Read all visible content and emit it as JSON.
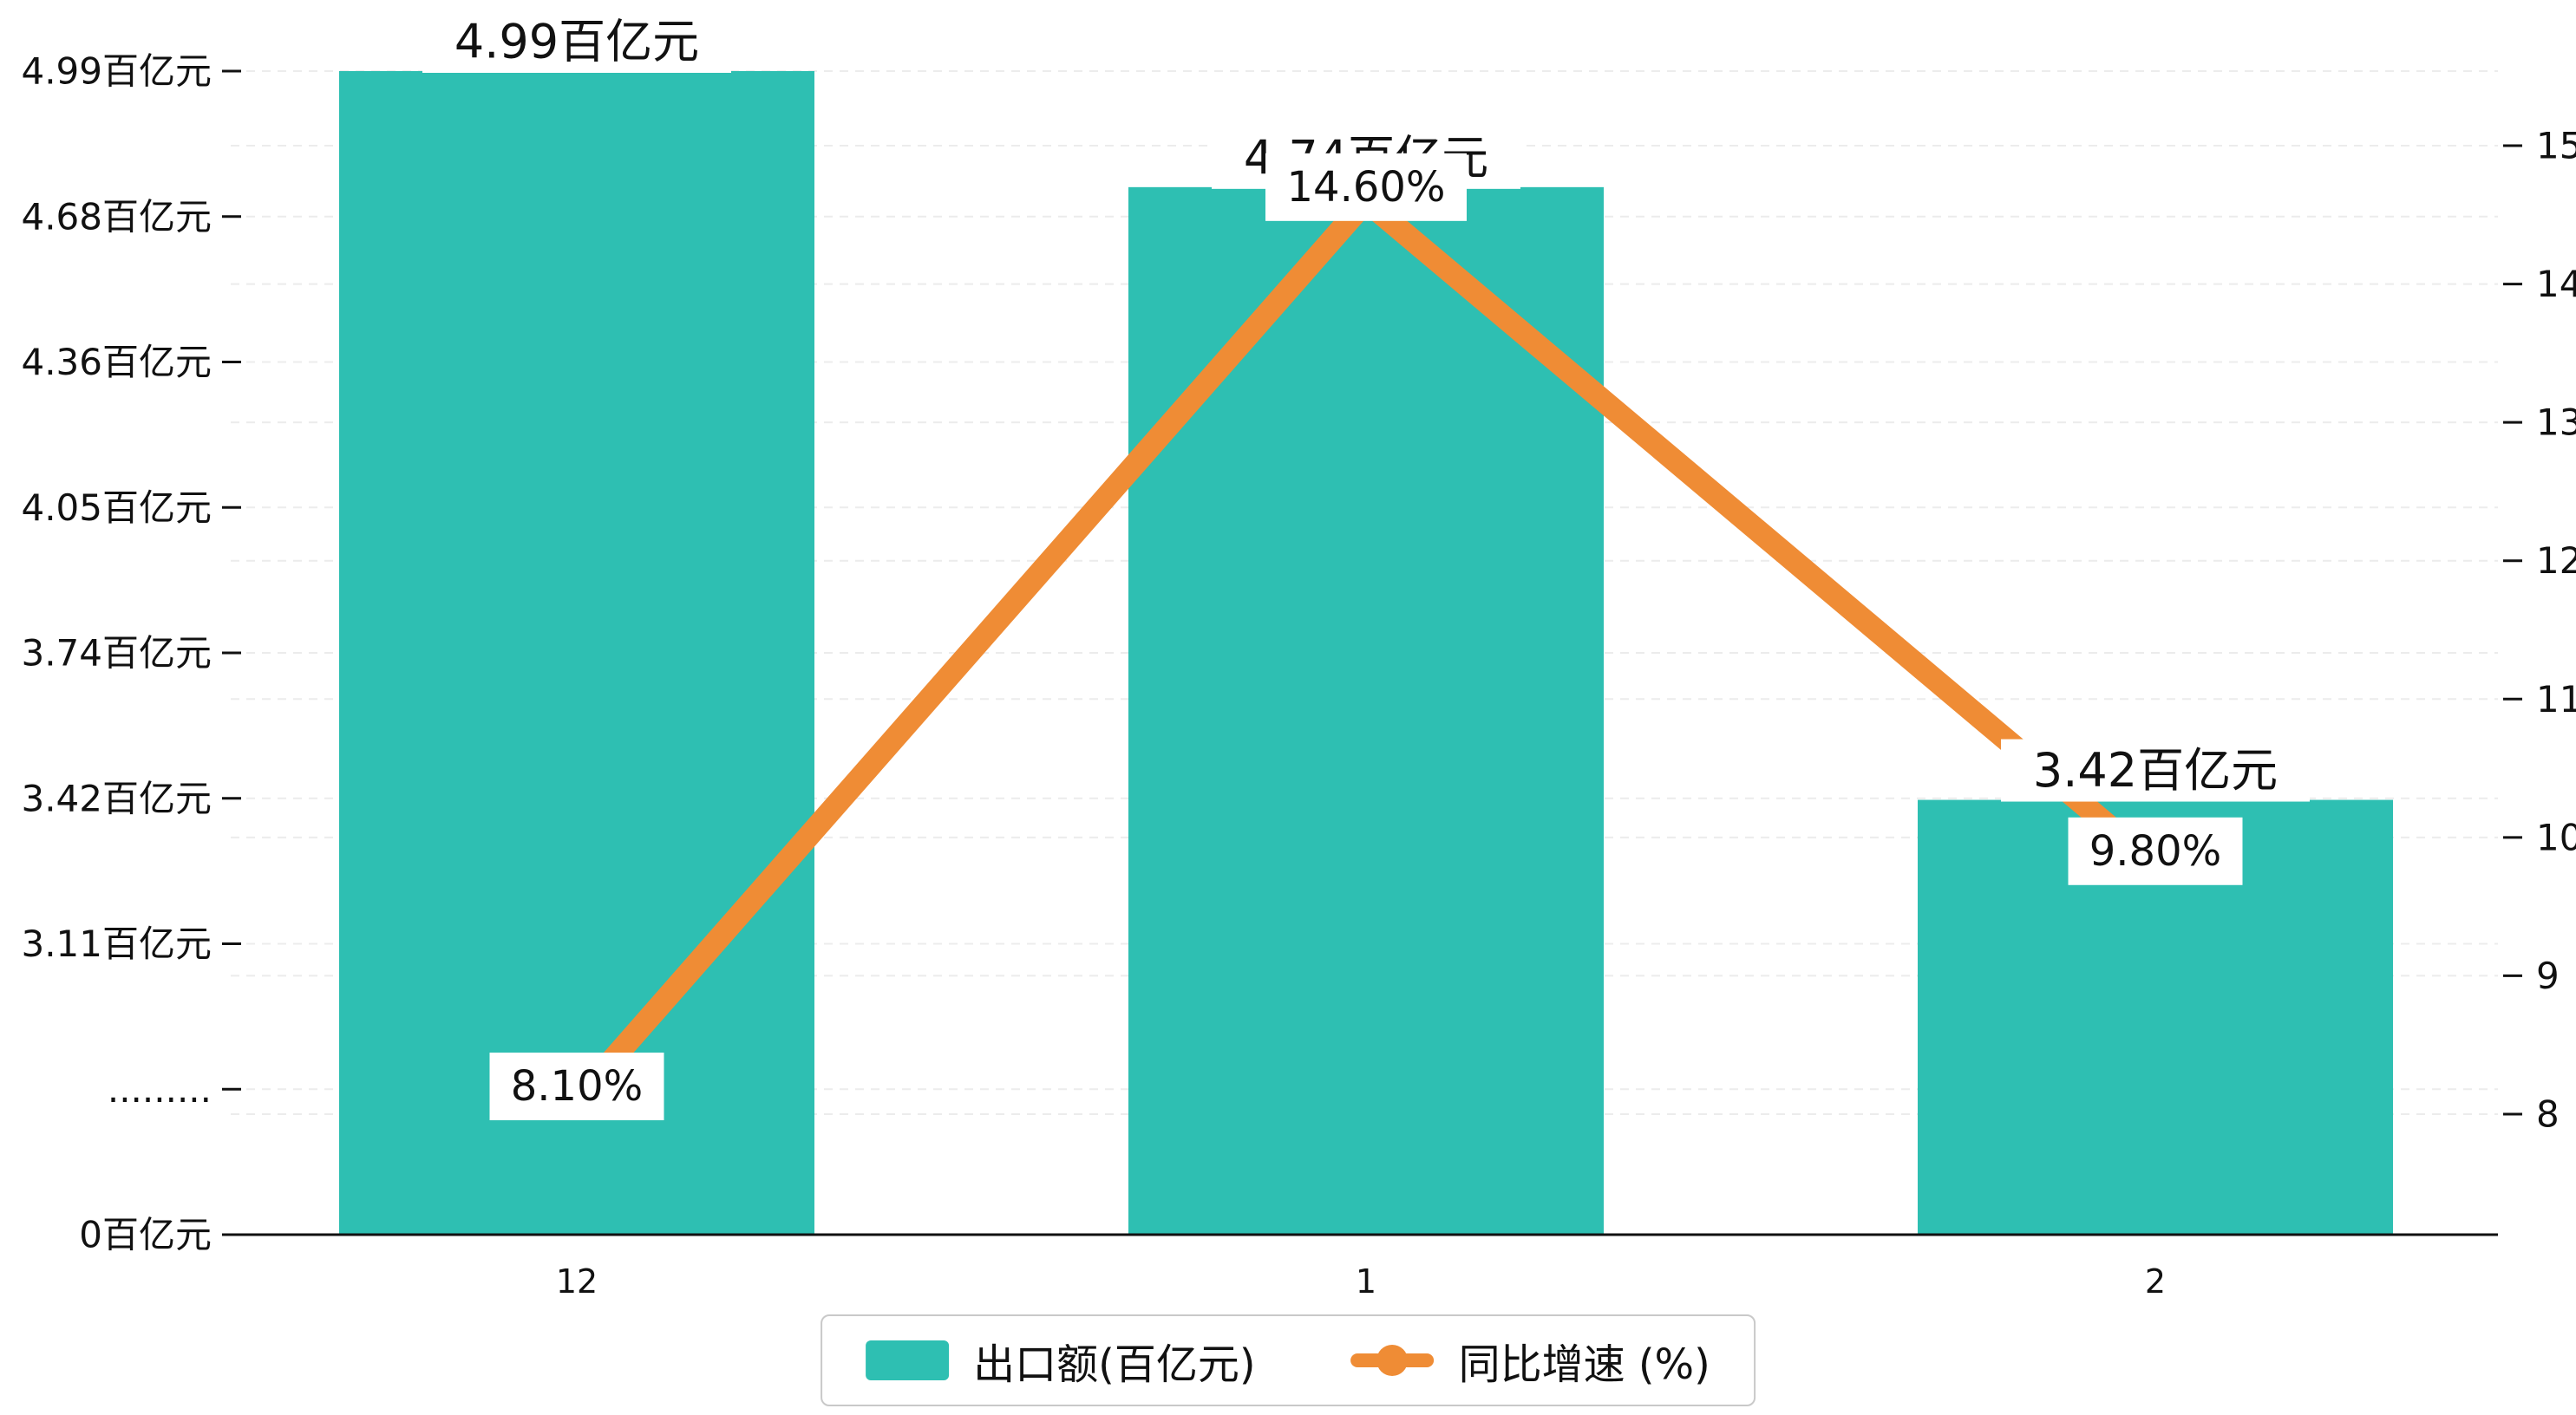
{
  "chart_data": {
    "type": "bar",
    "combo": "bar+line dual-axis",
    "categories": [
      "12",
      "1",
      "2"
    ],
    "series": [
      {
        "name": "出口额(百亿元)",
        "type": "bar",
        "axis": "left",
        "values": [
          4.99,
          4.74,
          3.42
        ],
        "data_labels": [
          "4.99百亿元",
          "4.74百亿元",
          "3.42百亿元"
        ],
        "color": "#2EBFB2"
      },
      {
        "name": "同比增速 (%)",
        "type": "line",
        "axis": "right",
        "values": [
          8.1,
          14.6,
          9.8
        ],
        "data_labels": [
          "8.10%",
          "14.60%",
          "9.80%"
        ],
        "color": "#EF8C35"
      }
    ],
    "left_axis": {
      "tick_labels": [
        "0百亿元",
        ".........",
        "3.11百亿元",
        "3.42百亿元",
        "3.74百亿元",
        "4.05百亿元",
        "4.36百亿元",
        "4.68百亿元",
        "4.99百亿元"
      ],
      "tick_values": [
        0,
        null,
        3.11,
        3.42,
        3.74,
        4.05,
        4.36,
        4.68,
        4.99
      ],
      "note": "axis break between 0 and 3.11 shown as dotted tick label"
    },
    "right_axis": {
      "tick_labels": [
        "8",
        "9",
        "10",
        "11",
        "12",
        "13",
        "14",
        "15"
      ],
      "min": 8,
      "max": 15
    },
    "legend": {
      "position": "bottom"
    },
    "grid": "dashed horizontal gridlines",
    "title": ""
  },
  "colors": {
    "bar": "#2EBFB2",
    "line": "#EF8C35",
    "axis": "#111111",
    "grid": "#ececec",
    "label_bg": "#ffffff",
    "legend_border": "#c9c9c9",
    "text": "#111111"
  }
}
